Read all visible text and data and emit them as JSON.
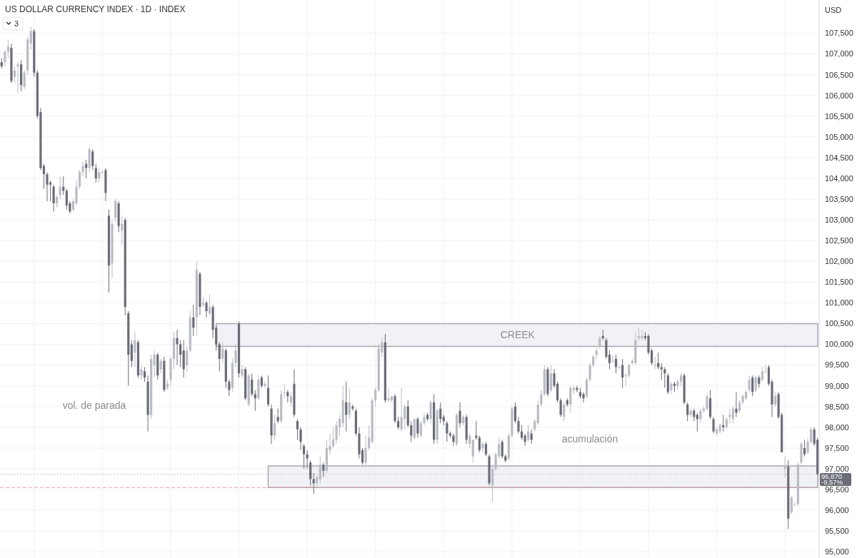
{
  "chart_data": {
    "type": "candlestick",
    "title": "US DOLLAR CURRENCY INDEX · 1D · INDEX",
    "ylabel": "USD",
    "categories": [
      null,
      null,
      null,
      null,
      null,
      null,
      null,
      null,
      null,
      null,
      null,
      null,
      null,
      null,
      null,
      null,
      null,
      null,
      null,
      null,
      null,
      null,
      null,
      null,
      null,
      null,
      null,
      null,
      null,
      null,
      null,
      null,
      null,
      null,
      null,
      null,
      null,
      null,
      null,
      null,
      null,
      null,
      null,
      null,
      null,
      null,
      null,
      null,
      null,
      null,
      null,
      null,
      null,
      null,
      null,
      null,
      null,
      null,
      null,
      null,
      null,
      null,
      null,
      null,
      null,
      null,
      null,
      null,
      null,
      null,
      null,
      null,
      null,
      null,
      null,
      null,
      null,
      null,
      null,
      null,
      null,
      null,
      null,
      null,
      null,
      null,
      null,
      null,
      null,
      null,
      null,
      null,
      null,
      null,
      null,
      null,
      null,
      null,
      null,
      null,
      null,
      null,
      null,
      null,
      null,
      null,
      null,
      null,
      null,
      null,
      null,
      null,
      null,
      null,
      null,
      null,
      null,
      null,
      null,
      null,
      null,
      null,
      null,
      null,
      null,
      null,
      null,
      null,
      null,
      null,
      null,
      null,
      null,
      null,
      null,
      null,
      null,
      null,
      null,
      null,
      null,
      null,
      null,
      null,
      null,
      null,
      null,
      null,
      null,
      null,
      null,
      null,
      null,
      null,
      null,
      null,
      null,
      null,
      null,
      null,
      null,
      null,
      null,
      null,
      null,
      null,
      null,
      null,
      null,
      null,
      null,
      null,
      null,
      null,
      null,
      null,
      null,
      null,
      null,
      null,
      null,
      null,
      null,
      null,
      null,
      null,
      null,
      null,
      null,
      null,
      null,
      null,
      null,
      null,
      null,
      null,
      null,
      null,
      null,
      null,
      null,
      null,
      null,
      null,
      null,
      null,
      null,
      null,
      null,
      null,
      null,
      null,
      null,
      null,
      null,
      null,
      null,
      null,
      null,
      null,
      null,
      null,
      null,
      null,
      null,
      null,
      null,
      null,
      null,
      null,
      null,
      null,
      null,
      null,
      null,
      null,
      null,
      null,
      null,
      null,
      null,
      null,
      null,
      null,
      null,
      null,
      null,
      null,
      null,
      null,
      null,
      null
    ],
    "ohlc": [
      [
        106800,
        106900,
        106650,
        106700
      ],
      [
        106800,
        107100,
        106700,
        107050
      ],
      [
        107050,
        107350,
        106900,
        107180
      ],
      [
        107150,
        107250,
        106300,
        106350
      ],
      [
        106450,
        106700,
        106300,
        106600
      ],
      [
        106700,
        106800,
        106050,
        106750
      ],
      [
        106750,
        106850,
        106100,
        106250
      ],
      [
        106200,
        106600,
        106150,
        106550
      ],
      [
        106600,
        107400,
        106500,
        107350
      ],
      [
        107250,
        107650,
        107100,
        107550
      ],
      [
        107550,
        107600,
        106450,
        106550
      ],
      [
        106550,
        106600,
        105450,
        105500
      ],
      [
        105600,
        105700,
        104200,
        104250
      ],
      [
        104300,
        104350,
        103750,
        104100
      ],
      [
        104100,
        104150,
        103450,
        103850
      ],
      [
        103900,
        103950,
        103450,
        103850
      ],
      [
        103800,
        103850,
        103200,
        103400
      ],
      [
        103400,
        103600,
        103300,
        103550
      ],
      [
        103600,
        104050,
        103500,
        103800
      ],
      [
        103800,
        104050,
        103600,
        103700
      ],
      [
        103700,
        103750,
        103250,
        103350
      ],
      [
        103400,
        103450,
        103150,
        103200
      ],
      [
        103250,
        103500,
        103200,
        103450
      ],
      [
        103400,
        103950,
        103350,
        103800
      ],
      [
        103800,
        104200,
        103750,
        104150
      ],
      [
        104150,
        104400,
        104050,
        104300
      ],
      [
        104350,
        104450,
        104000,
        104250
      ],
      [
        104250,
        104750,
        104150,
        104700
      ],
      [
        104650,
        104700,
        104200,
        104300
      ],
      [
        104250,
        104350,
        103900,
        104000
      ],
      [
        104000,
        104250,
        103900,
        104150
      ],
      [
        104150,
        104200,
        104100,
        104150
      ],
      [
        104200,
        104250,
        103450,
        103650
      ],
      [
        103100,
        103250,
        101250,
        101900
      ],
      [
        101950,
        103000,
        101600,
        102900
      ],
      [
        103050,
        103500,
        102950,
        103450
      ],
      [
        103400,
        103450,
        102700,
        102850
      ],
      [
        102750,
        103100,
        102400,
        102900
      ],
      [
        103000,
        103050,
        100700,
        100900
      ],
      [
        100750,
        100800,
        99000,
        99750
      ],
      [
        100000,
        100100,
        99450,
        99600
      ],
      [
        99800,
        100300,
        99450,
        100100
      ],
      [
        100050,
        100100,
        99200,
        99250
      ],
      [
        99250,
        99500,
        99150,
        99400
      ],
      [
        99350,
        99450,
        99100,
        99200
      ],
      [
        99100,
        99250,
        97900,
        98300
      ],
      [
        98300,
        99750,
        98200,
        99650
      ],
      [
        99500,
        99850,
        99200,
        99750
      ],
      [
        99750,
        99800,
        99150,
        99250
      ],
      [
        99400,
        99650,
        99300,
        99600
      ],
      [
        99600,
        99700,
        98850,
        98900
      ],
      [
        98950,
        99150,
        98900,
        99050
      ],
      [
        99150,
        99700,
        99000,
        99650
      ],
      [
        99650,
        100300,
        99400,
        100150
      ],
      [
        100150,
        100350,
        99500,
        100000
      ],
      [
        100000,
        100100,
        99450,
        99750
      ],
      [
        99850,
        100100,
        99200,
        99400
      ],
      [
        99500,
        99950,
        99350,
        99850
      ],
      [
        99850,
        100800,
        99800,
        100650
      ],
      [
        100650,
        100950,
        100200,
        100400
      ],
      [
        100650,
        102000,
        100200,
        101800
      ],
      [
        101700,
        101750,
        100700,
        100900
      ],
      [
        100950,
        101150,
        100900,
        101000
      ],
      [
        101000,
        101050,
        100650,
        100800
      ],
      [
        100750,
        101200,
        100700,
        100900
      ],
      [
        100900,
        100950,
        100150,
        100350
      ],
      [
        100400,
        100450,
        99850,
        100000
      ],
      [
        100000,
        100050,
        99350,
        99650
      ],
      [
        99650,
        100050,
        99550,
        99900
      ],
      [
        99850,
        99900,
        98950,
        99100
      ],
      [
        99100,
        99150,
        98750,
        98900
      ],
      [
        98950,
        99650,
        98850,
        99550
      ],
      [
        99550,
        100000,
        99450,
        99850
      ],
      [
        100500,
        100550,
        99200,
        99300
      ],
      [
        99250,
        99500,
        99200,
        99400
      ],
      [
        99400,
        99450,
        98650,
        98700
      ],
      [
        98550,
        99300,
        98500,
        99250
      ],
      [
        99150,
        99300,
        98750,
        98800
      ],
      [
        98800,
        98900,
        98400,
        98700
      ],
      [
        98700,
        99250,
        98650,
        99150
      ],
      [
        99200,
        99250,
        98950,
        99000
      ],
      [
        99000,
        99100,
        98950,
        99050
      ],
      [
        98950,
        99250,
        98500,
        98550
      ],
      [
        98450,
        98550,
        97600,
        97800
      ],
      [
        97800,
        98300,
        97700,
        98100
      ],
      [
        98250,
        98450,
        98100,
        98150
      ],
      [
        98150,
        98900,
        98100,
        98800
      ],
      [
        98850,
        99050,
        98700,
        98850
      ],
      [
        98850,
        98900,
        98600,
        98750
      ],
      [
        98600,
        98850,
        98500,
        98750
      ],
      [
        99050,
        99400,
        98250,
        98300
      ],
      [
        98150,
        98200,
        97700,
        97950
      ],
      [
        97950,
        98000,
        97450,
        97650
      ],
      [
        97550,
        97600,
        97000,
        97350
      ],
      [
        97350,
        97450,
        97000,
        97250
      ],
      [
        97150,
        97200,
        96600,
        96750
      ],
      [
        96750,
        96900,
        96400,
        96650
      ],
      [
        96650,
        96850,
        96550,
        96800
      ],
      [
        96750,
        97300,
        96650,
        97100
      ],
      [
        97100,
        97150,
        96800,
        96950
      ],
      [
        96950,
        97700,
        96900,
        97500
      ],
      [
        97450,
        97850,
        97350,
        97550
      ],
      [
        97550,
        98000,
        97500,
        97700
      ],
      [
        97700,
        98150,
        97600,
        98050
      ],
      [
        98000,
        98300,
        97800,
        98200
      ],
      [
        98100,
        99000,
        98000,
        98650
      ],
      [
        98600,
        99100,
        97900,
        98300
      ],
      [
        98300,
        98950,
        98200,
        98600
      ],
      [
        98500,
        98550,
        98400,
        98450
      ],
      [
        98400,
        98450,
        97800,
        97850
      ],
      [
        97850,
        98000,
        97250,
        97350
      ],
      [
        97450,
        97500,
        97100,
        97150
      ],
      [
        97150,
        97800,
        97100,
        97500
      ],
      [
        97500,
        98050,
        97450,
        97750
      ],
      [
        97650,
        98700,
        97600,
        98650
      ],
      [
        98650,
        98950,
        98500,
        98900
      ],
      [
        98900,
        100000,
        98850,
        99900
      ],
      [
        99800,
        100150,
        99700,
        100050
      ],
      [
        100050,
        100250,
        98600,
        98650
      ],
      [
        98650,
        98950,
        98600,
        98700
      ],
      [
        98650,
        98750,
        98600,
        98750
      ],
      [
        98750,
        98800,
        98100,
        98150
      ],
      [
        98150,
        98250,
        97950,
        98000
      ],
      [
        97950,
        98950,
        97900,
        98250
      ],
      [
        98200,
        98550,
        97950,
        98500
      ],
      [
        98500,
        98650,
        98000,
        98050
      ],
      [
        98050,
        98150,
        97650,
        97800
      ],
      [
        97750,
        98200,
        97700,
        98200
      ],
      [
        98200,
        98250,
        97750,
        97850
      ],
      [
        97800,
        98150,
        97750,
        98100
      ],
      [
        98100,
        98350,
        98050,
        98250
      ],
      [
        98300,
        98350,
        98150,
        98200
      ],
      [
        98200,
        98650,
        98100,
        98600
      ],
      [
        98600,
        98800,
        97600,
        97700
      ],
      [
        97700,
        98450,
        97600,
        98400
      ],
      [
        98450,
        98600,
        98100,
        98200
      ],
      [
        98250,
        98300,
        98050,
        98150
      ],
      [
        98100,
        98150,
        97650,
        97850
      ],
      [
        97850,
        97900,
        97750,
        97800
      ],
      [
        97800,
        97850,
        97550,
        97650
      ],
      [
        97600,
        98350,
        97550,
        98300
      ],
      [
        98400,
        98600,
        98000,
        98100
      ],
      [
        98100,
        98300,
        98050,
        98250
      ],
      [
        98250,
        98300,
        97600,
        97700
      ],
      [
        97600,
        97850,
        97500,
        97800
      ],
      [
        97300,
        97700,
        97150,
        97700
      ],
      [
        97800,
        98150,
        97700,
        97750
      ],
      [
        97750,
        97800,
        97400,
        97450
      ],
      [
        97500,
        97650,
        97400,
        97600
      ],
      [
        97600,
        97650,
        97300,
        97350
      ],
      [
        97300,
        97350,
        96600,
        96650
      ],
      [
        96600,
        97100,
        96200,
        97000
      ],
      [
        97000,
        97400,
        96950,
        97350
      ],
      [
        97300,
        97750,
        97250,
        97600
      ],
      [
        97650,
        97700,
        97250,
        97300
      ],
      [
        97300,
        97350,
        97150,
        97200
      ],
      [
        97250,
        97850,
        97200,
        97800
      ],
      [
        97800,
        98500,
        97750,
        98450
      ],
      [
        98500,
        98600,
        98100,
        98150
      ],
      [
        98150,
        98250,
        97850,
        97900
      ],
      [
        97900,
        98050,
        97700,
        97750
      ],
      [
        97800,
        97850,
        97550,
        97650
      ],
      [
        97700,
        98050,
        97650,
        97900
      ],
      [
        97850,
        97950,
        97600,
        97700
      ],
      [
        97950,
        98200,
        97900,
        98150
      ],
      [
        98100,
        98650,
        98050,
        98550
      ],
      [
        98550,
        98900,
        98500,
        98800
      ],
      [
        98800,
        99500,
        98750,
        99400
      ],
      [
        99400,
        99450,
        98750,
        98800
      ],
      [
        98900,
        99500,
        98850,
        99300
      ],
      [
        99300,
        99400,
        98950,
        99000
      ],
      [
        99050,
        99100,
        98600,
        98650
      ],
      [
        98650,
        98700,
        98250,
        98300
      ],
      [
        98250,
        98600,
        98150,
        98550
      ],
      [
        98650,
        98700,
        98500,
        98550
      ],
      [
        98550,
        99000,
        98350,
        98950
      ],
      [
        98900,
        99000,
        98800,
        98950
      ],
      [
        98950,
        99000,
        98850,
        98900
      ],
      [
        98850,
        98950,
        98700,
        98750
      ],
      [
        98800,
        98850,
        98600,
        98700
      ],
      [
        98750,
        99200,
        98700,
        99150
      ],
      [
        99150,
        99550,
        99100,
        99500
      ],
      [
        99500,
        99750,
        99450,
        99700
      ],
      [
        99750,
        99900,
        99650,
        99850
      ],
      [
        99950,
        100200,
        99900,
        100150
      ],
      [
        100200,
        100350,
        100100,
        100150
      ],
      [
        100100,
        100150,
        99650,
        99700
      ],
      [
        99750,
        99850,
        99400,
        99550
      ],
      [
        99600,
        99750,
        99550,
        99600
      ],
      [
        99650,
        99750,
        99300,
        99450
      ],
      [
        99450,
        99500,
        99400,
        99450
      ],
      [
        99500,
        99650,
        98950,
        99200
      ],
      [
        99250,
        99300,
        99000,
        99250
      ],
      [
        99250,
        99550,
        99200,
        99500
      ],
      [
        99550,
        99650,
        99500,
        99600
      ],
      [
        99550,
        100300,
        99500,
        100100
      ],
      [
        100150,
        100400,
        100100,
        100200
      ],
      [
        100150,
        100350,
        100100,
        100200
      ],
      [
        100200,
        100300,
        100100,
        100150
      ],
      [
        100200,
        100250,
        99750,
        99800
      ],
      [
        99850,
        99900,
        99500,
        99550
      ],
      [
        99500,
        99700,
        99400,
        99500
      ],
      [
        99550,
        99800,
        99400,
        99450
      ],
      [
        99450,
        99550,
        99150,
        99400
      ],
      [
        99400,
        99450,
        98950,
        99300
      ],
      [
        99250,
        99300,
        98800,
        98850
      ],
      [
        98900,
        99100,
        98800,
        99050
      ],
      [
        99050,
        99100,
        98850,
        99000
      ],
      [
        99000,
        99150,
        98900,
        99100
      ],
      [
        99100,
        99300,
        99000,
        99250
      ],
      [
        99250,
        99300,
        98550,
        98600
      ],
      [
        98550,
        98600,
        98150,
        98300
      ],
      [
        98300,
        98450,
        98250,
        98400
      ],
      [
        98400,
        98450,
        98150,
        98250
      ],
      [
        98300,
        98350,
        97900,
        98200
      ],
      [
        98200,
        98450,
        98100,
        98400
      ],
      [
        98400,
        98500,
        98350,
        98450
      ],
      [
        98450,
        98800,
        98400,
        98750
      ],
      [
        98700,
        98900,
        98200,
        98250
      ],
      [
        98200,
        98250,
        97850,
        97900
      ],
      [
        97850,
        98000,
        97800,
        97950
      ],
      [
        97900,
        98100,
        97850,
        98050
      ],
      [
        98050,
        98300,
        97900,
        98000
      ],
      [
        98000,
        98250,
        97950,
        98200
      ],
      [
        98250,
        98450,
        98100,
        98300
      ],
      [
        98200,
        98500,
        98100,
        98450
      ],
      [
        98450,
        98850,
        98250,
        98350
      ],
      [
        98400,
        98650,
        98350,
        98600
      ],
      [
        98600,
        98800,
        98550,
        98750
      ],
      [
        98700,
        98900,
        98650,
        98850
      ],
      [
        98900,
        99250,
        98850,
        99150
      ],
      [
        99200,
        99250,
        98750,
        98850
      ],
      [
        98900,
        99250,
        98850,
        99200
      ],
      [
        99200,
        99250,
        98950,
        99050
      ],
      [
        99150,
        99450,
        99100,
        99350
      ],
      [
        99350,
        99500,
        99300,
        99350
      ],
      [
        99450,
        99500,
        99000,
        99050
      ],
      [
        99100,
        99150,
        98250,
        98550
      ],
      [
        98550,
        98850,
        98500,
        98750
      ],
      [
        98800,
        98850,
        98200,
        98250
      ],
      [
        98300,
        98350,
        97400,
        97400
      ],
      [
        97000,
        97300,
        96800,
        97050
      ],
      [
        97050,
        97200,
        95550,
        95800
      ],
      [
        95950,
        96350,
        95900,
        96300
      ],
      [
        96150,
        96200,
        96100,
        96150
      ],
      [
        96150,
        97150,
        96100,
        97100
      ],
      [
        97150,
        97650,
        97100,
        97600
      ],
      [
        97500,
        97700,
        97300,
        97350
      ],
      [
        97400,
        97750,
        97350,
        97650
      ],
      [
        97650,
        98000,
        97600,
        97950
      ],
      [
        97950,
        98000,
        97550,
        97600
      ],
      [
        97700,
        97750,
        96850,
        96870
      ]
    ],
    "ylim": [
      94850,
      108300
    ],
    "yticks": [
      {
        "value": 95000,
        "label": "95,000"
      },
      {
        "value": 95500,
        "label": "95,500"
      },
      {
        "value": 96000,
        "label": "96,000"
      },
      {
        "value": 96500,
        "label": "96,500"
      },
      {
        "value": 97000,
        "label": "97,000"
      },
      {
        "value": 97500,
        "label": "97,500"
      },
      {
        "value": 98000,
        "label": "98,000"
      },
      {
        "value": 98500,
        "label": "98,500"
      },
      {
        "value": 99000,
        "label": "99,000"
      },
      {
        "value": 99500,
        "label": "99,500"
      },
      {
        "value": 100000,
        "label": "100,000"
      },
      {
        "value": 100500,
        "label": "100,500"
      },
      {
        "value": 101000,
        "label": "101,000"
      },
      {
        "value": 101500,
        "label": "101,500"
      },
      {
        "value": 102000,
        "label": "102,000"
      },
      {
        "value": 102500,
        "label": "102,500"
      },
      {
        "value": 103000,
        "label": "103,000"
      },
      {
        "value": 103500,
        "label": "103,500"
      },
      {
        "value": 104000,
        "label": "104,000"
      },
      {
        "value": 104500,
        "label": "104,500"
      },
      {
        "value": 105000,
        "label": "105,000"
      },
      {
        "value": 105500,
        "label": "105,500"
      },
      {
        "value": 106000,
        "label": "106,000"
      },
      {
        "value": 106500,
        "label": "106,500"
      },
      {
        "value": 107000,
        "label": "107,000"
      },
      {
        "value": 107500,
        "label": "107,500"
      }
    ],
    "grid": true,
    "bands": [
      {
        "axis": "y",
        "from": 99950,
        "to": 100500,
        "label": "CREEK",
        "color": "#eceef2"
      },
      {
        "axis": "y",
        "from": 96550,
        "to": 97070,
        "color": "#eceef2"
      }
    ],
    "ref_lines": [
      {
        "axis": "y",
        "value": 96870,
        "label": "96,870",
        "line_style": "dotted",
        "color": "#9598a1"
      },
      {
        "axis": "y",
        "value": 96550,
        "line_style": "dashed",
        "color": "#ef9a9a"
      }
    ],
    "annotations": [
      "vol. de parada",
      "acumulación",
      "-9,57%",
      "3"
    ]
  }
}
